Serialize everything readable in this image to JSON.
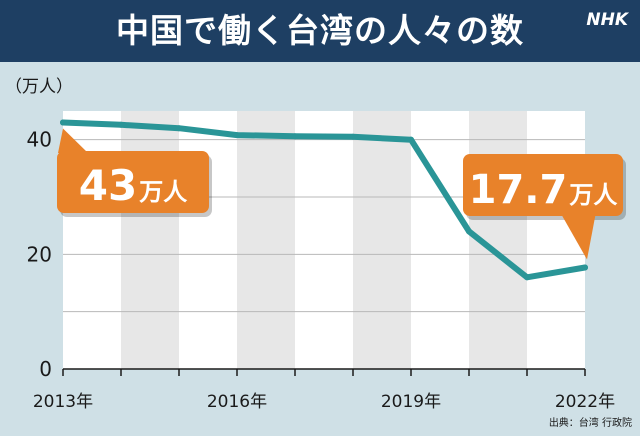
{
  "header": {
    "title": "中国で働く台湾の人々の数",
    "logo": "NHK"
  },
  "colors": {
    "header_bg": "#1e3f63",
    "line": "#2a9597",
    "callout": "#e8822a",
    "stripe": "#e7e7e7",
    "plot_bg": "#ffffff"
  },
  "chart_data": {
    "type": "line",
    "title": "中国で働く台湾の人々の数",
    "ylabel": "（万人）",
    "xlabel": "",
    "x": [
      2013,
      2014,
      2015,
      2016,
      2017,
      2018,
      2019,
      2020,
      2021,
      2022
    ],
    "series": [
      {
        "values": [
          43,
          42.6,
          42,
          40.8,
          40.6,
          40.5,
          40,
          24,
          16,
          17.7
        ]
      }
    ],
    "ylim": [
      0,
      45
    ],
    "xlim": [
      2013,
      2022
    ],
    "yticks": [
      0,
      20,
      40
    ],
    "xtick_labels": [
      {
        "year": 2013,
        "label": "2013年"
      },
      {
        "year": 2016,
        "label": "2016年"
      },
      {
        "year": 2019,
        "label": "2019年"
      },
      {
        "year": 2022,
        "label": "2022年"
      }
    ],
    "annotations": [
      {
        "year": 2013,
        "number": "43",
        "unit": "万人"
      },
      {
        "year": 2022,
        "number": "17.7",
        "unit": "万人"
      }
    ],
    "source": "出典：台湾 行政院",
    "grid": true
  }
}
